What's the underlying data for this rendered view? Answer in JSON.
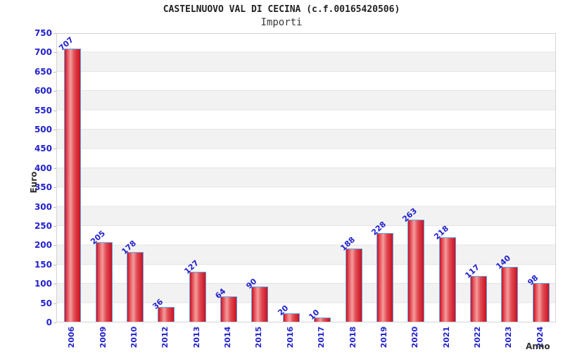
{
  "title": "CASTELNUOVO VAL DI CECINA (c.f.00165420506)",
  "subtitle": "Importi",
  "chart_data": {
    "type": "bar",
    "title": "CASTELNUOVO VAL DI CECINA (c.f.00165420506)",
    "subtitle": "Importi",
    "xlabel": "Anno",
    "ylabel": "Euro",
    "categories": [
      "2006",
      "2009",
      "2010",
      "2012",
      "2013",
      "2014",
      "2015",
      "2016",
      "2017",
      "2018",
      "2019",
      "2020",
      "2021",
      "2022",
      "2023",
      "2024"
    ],
    "values": [
      707,
      205,
      178,
      36,
      127,
      64,
      90,
      20,
      10,
      188,
      228,
      263,
      218,
      117,
      140,
      98
    ],
    "ylim": [
      0,
      750
    ],
    "ytick_step": 50,
    "legend_position": "none",
    "grid": "horizontal-bands-alternating",
    "colors": {
      "bar_edge": "#5ea7e8",
      "bar_dark_red": "#cc1020",
      "bar_light_red": "#f49c9c",
      "tick_label_blue": "#2222cc",
      "band_gray": "#f2f2f2",
      "band_white": "#ffffff",
      "grid_line": "#e4e4e4",
      "axis_title_text": "#333333"
    }
  }
}
